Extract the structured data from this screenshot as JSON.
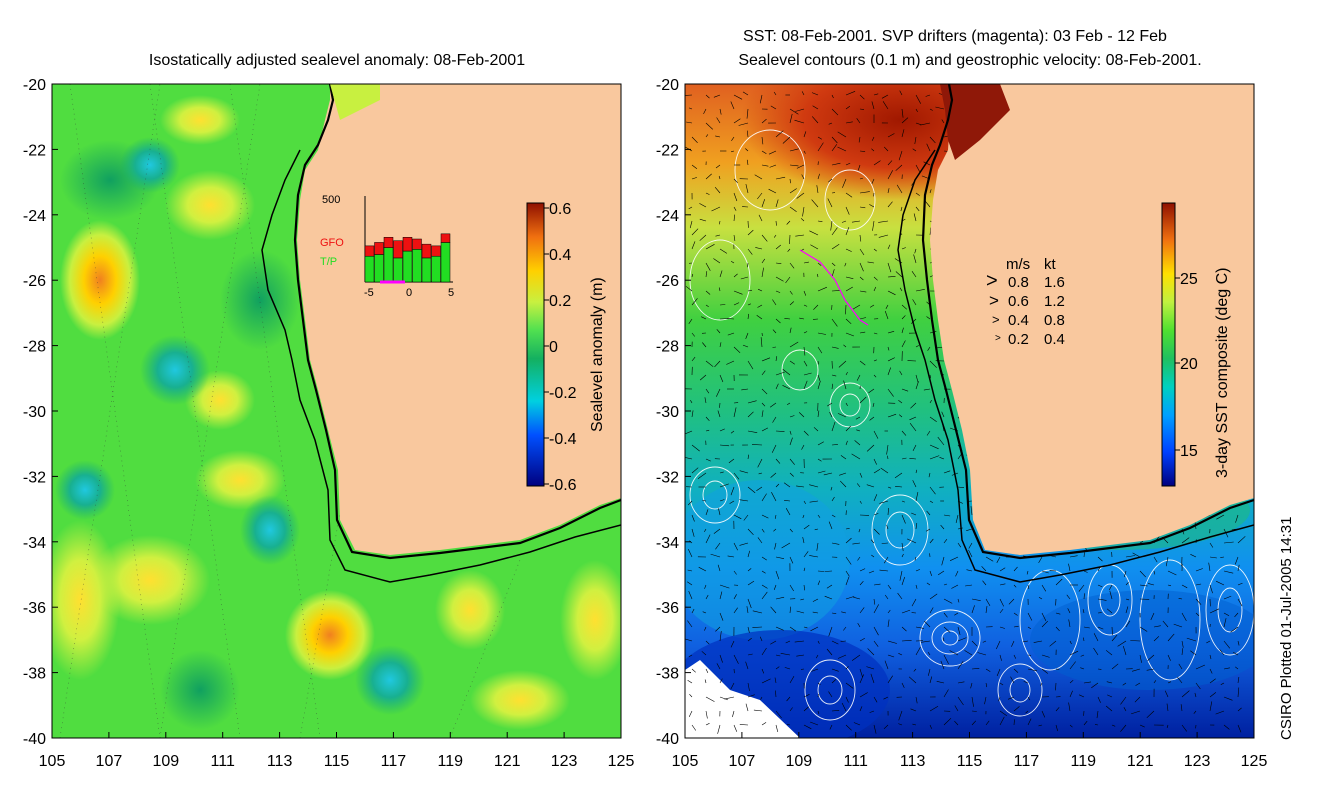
{
  "left_panel": {
    "title": "Isostatically adjusted sealevel anomaly: 08-Feb-2001",
    "colorbar": {
      "label": "Sealevel anomaly (m)",
      "ticks": [
        "0.6",
        "0.4",
        "0.2",
        "0",
        "-0.2",
        "-0.4",
        "-0.6"
      ]
    },
    "inset": {
      "ymax_label": "500",
      "gfo_label": "GFO",
      "tp_label": "T/P",
      "x_ticks": [
        "-5",
        "0",
        "5"
      ],
      "gfo_color": "#ee1111",
      "tp_color": "#22dd22",
      "tp_counts": [
        150,
        160,
        200,
        140,
        180,
        190,
        140,
        150,
        230
      ],
      "gfo_counts": [
        60,
        70,
        60,
        100,
        80,
        60,
        80,
        60,
        50
      ]
    }
  },
  "right_panel": {
    "title_line1": "SST: 08-Feb-2001. SVP drifters (magenta): 03 Feb - 12 Feb",
    "title_line2": "Sealevel contours (0.1 m) and geostrophic velocity: 08-Feb-2001.",
    "colorbar": {
      "label": "3-day SST composite (deg C)",
      "ticks": [
        "25",
        "20",
        "15"
      ]
    },
    "velocity_legend": {
      "header_ms": "m/s",
      "header_kt": "kt",
      "rows": [
        {
          "ms": "0.8",
          "kt": "1.6"
        },
        {
          "ms": "0.6",
          "kt": "1.2"
        },
        {
          "ms": "0.4",
          "kt": "0.8"
        },
        {
          "ms": "0.2",
          "kt": "0.4"
        }
      ]
    }
  },
  "axes": {
    "y_ticks": [
      "-20",
      "-22",
      "-24",
      "-26",
      "-28",
      "-30",
      "-32",
      "-34",
      "-36",
      "-38",
      "-40"
    ],
    "x_ticks": [
      "105",
      "107",
      "109",
      "111",
      "113",
      "115",
      "117",
      "119",
      "121",
      "123",
      "125"
    ]
  },
  "credit": "CSIRO Plotted 01-Jul-2005 14:31",
  "colors": {
    "land": "#f9c89e",
    "ocean_green": "#3dd23d",
    "coast": "#000000"
  }
}
